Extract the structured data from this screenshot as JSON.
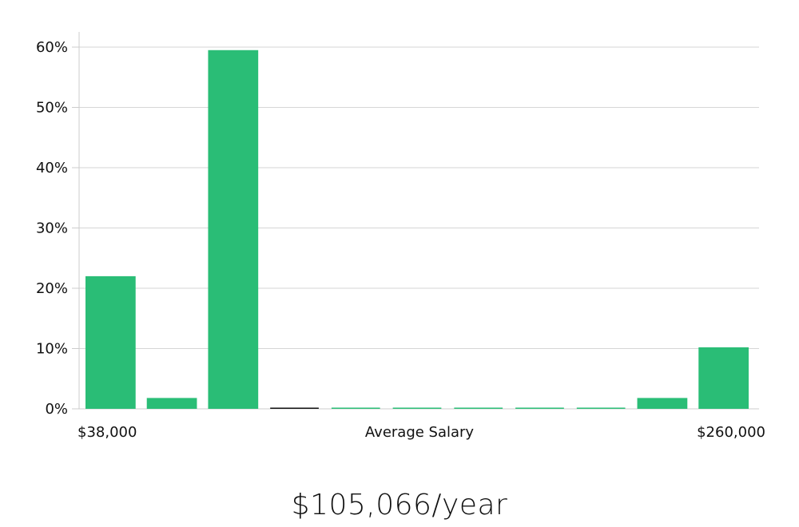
{
  "chart_data": {
    "type": "bar",
    "series": [
      {
        "values": [
          22,
          1.8,
          59.5,
          0,
          0,
          0,
          0,
          0,
          0,
          1.8,
          10.2
        ]
      }
    ],
    "y_tick_labels": [
      "0%",
      "10%",
      "20%",
      "30%",
      "40%",
      "50%",
      "60%"
    ],
    "y_ticks": [
      0,
      10,
      20,
      30,
      40,
      50,
      60
    ],
    "ylim": [
      0,
      63
    ],
    "x_min_label": "$38,000",
    "x_max_label": "$260,000",
    "xlabel": "Average Salary",
    "grid": true,
    "colors": {
      "bar": "#2abd76",
      "zero_bar": "#111111",
      "grid": "#d6d6d6",
      "axis": "#cccccc"
    }
  },
  "summary": {
    "salary_text": "$105,066/year"
  }
}
